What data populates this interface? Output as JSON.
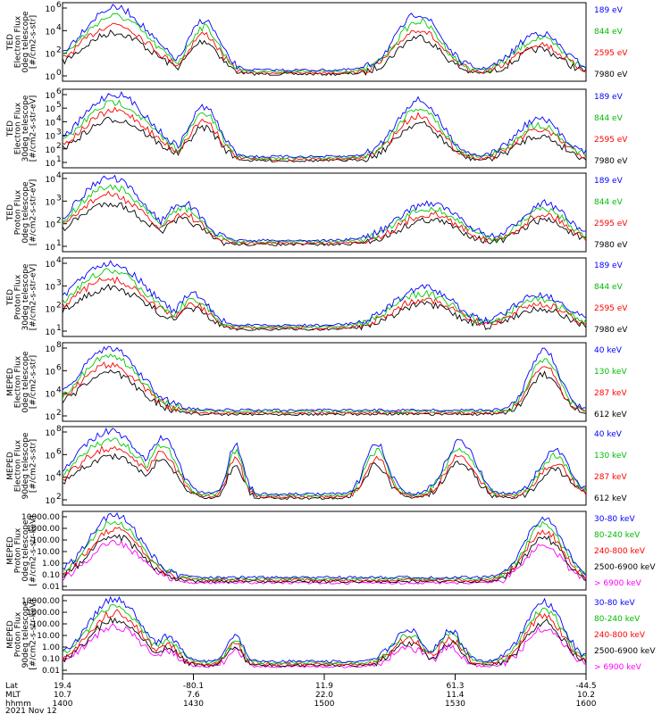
{
  "chart_data": [
    {
      "type": "line",
      "ylabel": [
        "TED",
        "Electron Flux",
        "0deg telescope",
        "[#/cm2-s-str]"
      ],
      "yscale": "log",
      "ylim": [
        1,
        1000000
      ],
      "yticks": [
        {
          "e": 0,
          "t": "10"
        },
        {
          "e": 2,
          "t": "10"
        },
        {
          "e": 4,
          "t": "10"
        },
        {
          "e": 6,
          "t": "10"
        }
      ],
      "yticks_exp": [
        "0",
        "2",
        "4",
        "6"
      ],
      "series": [
        {
          "name": "7980 eV",
          "color": "#000000",
          "profile": "ted-e",
          "peak": 1.9
        },
        {
          "name": "2595 eV",
          "color": "#ff0000",
          "profile": "ted-e",
          "peak": 2.2
        },
        {
          "name": "844 eV",
          "color": "#00cc00",
          "profile": "ted-e",
          "peak": 2.5
        },
        {
          "name": "189 eV",
          "color": "#0000ff",
          "profile": "ted-e",
          "peak": 3.0
        }
      ]
    },
    {
      "type": "line",
      "ylabel": [
        "TED",
        "Electron Flux",
        "30deg telescope",
        "[#/cm2-s-str-eV]"
      ],
      "yscale": "log",
      "ylim": [
        1,
        1000000
      ],
      "yticks_exp": [
        "1",
        "2",
        "3",
        "4",
        "5",
        "6"
      ],
      "series": [
        {
          "name": "7980 eV",
          "color": "#000000",
          "profile": "ted-e",
          "peak": 2.0
        },
        {
          "name": "2595 eV",
          "color": "#ff0000",
          "profile": "ted-e",
          "peak": 2.3
        },
        {
          "name": "844 eV",
          "color": "#00cc00",
          "profile": "ted-e",
          "peak": 2.6
        },
        {
          "name": "189 eV",
          "color": "#0000ff",
          "profile": "ted-e",
          "peak": 3.1
        }
      ]
    },
    {
      "type": "line",
      "ylabel": [
        "TED",
        "Proton Flux",
        "0deg telescope",
        "[#/cm2-s-str-eV]"
      ],
      "yscale": "log",
      "ylim": [
        1,
        100000
      ],
      "yticks_exp": [
        "1",
        "2",
        "3",
        "4"
      ],
      "series": [
        {
          "name": "7980 eV",
          "color": "#000000",
          "profile": "ted-p",
          "peak": 2.3
        },
        {
          "name": "2595 eV",
          "color": "#ff0000",
          "profile": "ted-p",
          "peak": 2.6
        },
        {
          "name": "844 eV",
          "color": "#00cc00",
          "profile": "ted-p",
          "peak": 2.8
        },
        {
          "name": "189 eV",
          "color": "#0000ff",
          "profile": "ted-p",
          "peak": 3.4
        }
      ]
    },
    {
      "type": "line",
      "ylabel": [
        "TED",
        "Proton Flux",
        "30deg telescope",
        "[#/cm2-s-str-eV]"
      ],
      "yscale": "log",
      "ylim": [
        1,
        100000
      ],
      "yticks_exp": [
        "1",
        "2",
        "3",
        "4"
      ],
      "series": [
        {
          "name": "7980 eV",
          "color": "#000000",
          "profile": "ted-p30",
          "peak": 1.4
        },
        {
          "name": "2595 eV",
          "color": "#ff0000",
          "profile": "ted-p30",
          "peak": 1.7
        },
        {
          "name": "844 eV",
          "color": "#00cc00",
          "profile": "ted-p30",
          "peak": 2.6
        },
        {
          "name": "189 eV",
          "color": "#0000ff",
          "profile": "ted-p30",
          "peak": 3.1
        }
      ]
    },
    {
      "type": "line",
      "ylabel": [
        "MEPED",
        "Electron Flux",
        "0deg telescope",
        "[#/cm2-s-str]"
      ],
      "yscale": "log",
      "ylim": [
        10,
        1000000
      ],
      "yticks_exp": [
        "2",
        "4",
        "6",
        "8"
      ],
      "series": [
        {
          "name": "612 keV",
          "color": "#000000",
          "profile": "meped-e0",
          "peak": 6.4
        },
        {
          "name": "287 keV",
          "color": "#ff0000",
          "profile": "meped-e0",
          "peak": 6.6
        },
        {
          "name": "130 keV",
          "color": "#00cc00",
          "profile": "meped-e0",
          "peak": 6.8
        },
        {
          "name": "40 keV",
          "color": "#0000ff",
          "profile": "meped-e0",
          "peak": 7.1
        }
      ]
    },
    {
      "type": "line",
      "ylabel": [
        "MEPED",
        "Electron Flux",
        "90deg telescope",
        "[#/cm2-s-str]"
      ],
      "yscale": "log",
      "ylim": [
        100,
        1000000
      ],
      "yticks_exp": [
        "2",
        "4",
        "6",
        "8"
      ],
      "series": [
        {
          "name": "612 keV",
          "color": "#000000",
          "profile": "meped-e90",
          "peak": 3.6
        },
        {
          "name": "287 keV",
          "color": "#ff0000",
          "profile": "meped-e90",
          "peak": 4.3
        },
        {
          "name": "130 keV",
          "color": "#00cc00",
          "profile": "meped-e90",
          "peak": 4.6
        },
        {
          "name": "40 keV",
          "color": "#0000ff",
          "profile": "meped-e90",
          "peak": 4.9
        }
      ]
    },
    {
      "type": "line",
      "ylabel": [
        "MEPED",
        "Proton Flux",
        "0deg telescope",
        "[#/cm2-s-str-keV]"
      ],
      "yscale": "log",
      "ylim": [
        0.01,
        10000
      ],
      "yticklabels": [
        "10000.00",
        "1000.00",
        "100.00",
        "10.00",
        "1.00",
        "0.10",
        "0.01"
      ],
      "series": [
        {
          "name": "> 6900 keV",
          "color": "#ff00ff",
          "profile": "meped-p",
          "peak": 0.4
        },
        {
          "name": "2500-6900 keV",
          "color": "#000000",
          "profile": "meped-p",
          "peak": 0.9
        },
        {
          "name": "240-800 keV",
          "color": "#ff0000",
          "profile": "meped-p",
          "peak": 1.5
        },
        {
          "name": "80-240 keV",
          "color": "#00cc00",
          "profile": "meped-p",
          "peak": 1.9
        },
        {
          "name": "30-80 keV",
          "color": "#0000ff",
          "profile": "meped-p",
          "peak": 2.3
        }
      ]
    },
    {
      "type": "line",
      "ylabel": [
        "MEPED",
        "Proton Flux",
        "90deg telescope",
        "[#/cm2-s-str-keV]"
      ],
      "yscale": "log",
      "ylim": [
        0.01,
        10000
      ],
      "yticklabels": [
        "10000.00",
        "1000.00",
        "100.00",
        "10.00",
        "1.00",
        "0.10",
        "0.01"
      ],
      "series": [
        {
          "name": "> 6900 keV",
          "color": "#ff00ff",
          "profile": "meped-p90",
          "peak": 0.2
        },
        {
          "name": "2500-6900 keV",
          "color": "#000000",
          "profile": "meped-p90",
          "peak": 0.7
        },
        {
          "name": "240-800 keV",
          "color": "#ff0000",
          "profile": "meped-p90",
          "peak": 1.3
        },
        {
          "name": "80-240 keV",
          "color": "#00cc00",
          "profile": "meped-p90",
          "peak": 1.7
        },
        {
          "name": "30-80 keV",
          "color": "#0000ff",
          "profile": "meped-p90",
          "peak": 2.1
        }
      ]
    }
  ],
  "x_axis": {
    "row_labels": [
      "Lat",
      "MLT",
      "hhmm"
    ],
    "ticks": [
      {
        "lat": "19.4",
        "mlt": "10.7",
        "hhmm": "1400"
      },
      {
        "lat": "-80.1",
        "mlt": "7.6",
        "hhmm": "1430"
      },
      {
        "lat": "11.9",
        "mlt": "22.0",
        "hhmm": "1500"
      },
      {
        "lat": "61.3",
        "mlt": "11.4",
        "hhmm": "1530"
      },
      {
        "lat": "-44.5",
        "mlt": "10.2",
        "hhmm": "1600"
      }
    ],
    "date": "2021 Nov 12"
  }
}
